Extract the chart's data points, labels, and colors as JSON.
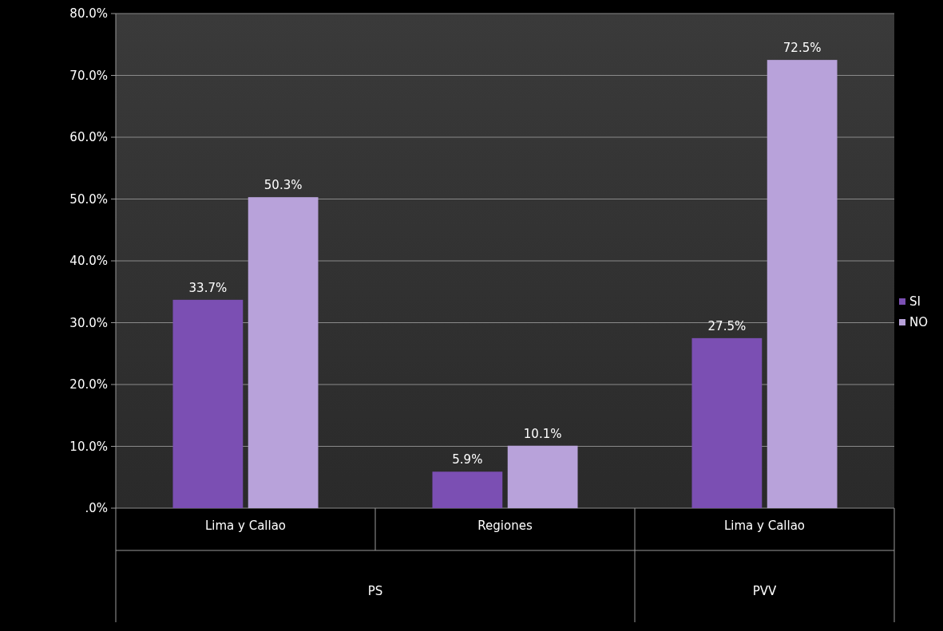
{
  "chart_data": {
    "type": "bar",
    "categories": [
      "Lima y Callao",
      "Regiones",
      "Lima y Callao"
    ],
    "series": [
      {
        "name": "SI",
        "color": "#7b4fb3",
        "values": [
          33.7,
          5.9,
          27.5
        ]
      },
      {
        "name": "NO",
        "color": "#b8a2da",
        "values": [
          50.3,
          10.1,
          72.5
        ]
      }
    ],
    "ylim": [
      0,
      80
    ],
    "yticks": [
      {
        "value": 0,
        "label": ".0%"
      },
      {
        "value": 10,
        "label": "10.0%"
      },
      {
        "value": 20,
        "label": "20.0%"
      },
      {
        "value": 30,
        "label": "30.0%"
      },
      {
        "value": 40,
        "label": "40.0%"
      },
      {
        "value": 50,
        "label": "50.0%"
      },
      {
        "value": 60,
        "label": "60.0%"
      },
      {
        "value": 70,
        "label": "70.0%"
      },
      {
        "value": 80,
        "label": "80.0%"
      }
    ],
    "value_labels": [
      [
        "33.7%",
        "5.9%",
        "27.5%"
      ],
      [
        "50.3%",
        "10.1%",
        "72.5%"
      ]
    ],
    "annotations": [
      "PS",
      "PVV"
    ],
    "grid": "y",
    "legend": "right"
  }
}
